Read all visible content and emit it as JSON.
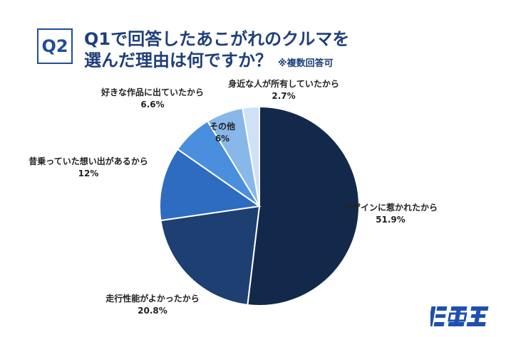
{
  "header": {
    "badge": "Q2",
    "title_line1": "Q1で回答したあこがれのクルマを",
    "title_line2": "選んだ理由は何ですか？",
    "note": "※複数回答可"
  },
  "logo": {
    "text": "旧車王"
  },
  "colors": {
    "slice_colors": [
      "#13294b",
      "#1d3f72",
      "#2d6cc0",
      "#4a8ede",
      "#88b7ea",
      "#cfe1f7",
      "#eef4fc"
    ]
  },
  "chart_data": {
    "type": "pie",
    "start_angle_deg": 0,
    "direction": "clockwise",
    "slices": [
      {
        "label": "デザインに惹かれたから",
        "value": 51.9,
        "display": "51.9%"
      },
      {
        "label": "走行性能がよかったから",
        "value": 20.8,
        "display": "20.8%"
      },
      {
        "label": "昔乗っていた想い出があるから",
        "value": 12,
        "display": "12%"
      },
      {
        "label": "好きな作品に出ていたから",
        "value": 6.6,
        "display": "6.6%"
      },
      {
        "label": "その他",
        "value": 6,
        "display": "6%"
      },
      {
        "label": "身近な人が所有していたから",
        "value": 2.7,
        "display": "2.7%"
      }
    ]
  }
}
